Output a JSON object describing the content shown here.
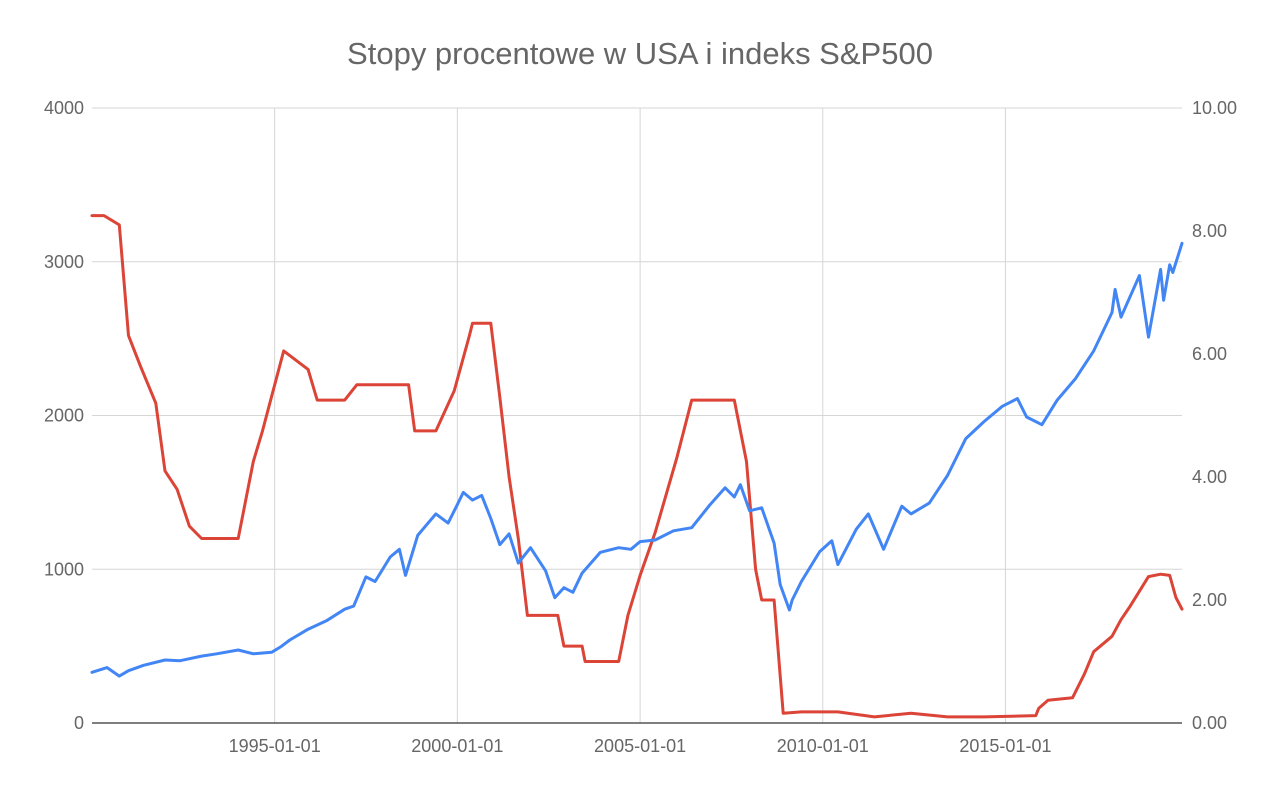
{
  "chart_data": {
    "type": "line",
    "title": "Stopy procentowe w USA i indeks S&P500",
    "x_domain": [
      "1990-01-01",
      "2019-11-01"
    ],
    "x_ticks": [
      "1995-01-01",
      "2000-01-01",
      "2005-01-01",
      "2010-01-01",
      "2015-01-01"
    ],
    "y_left": {
      "ylim": [
        0,
        4000
      ],
      "ticks": [
        "0",
        "1000",
        "2000",
        "3000",
        "4000"
      ]
    },
    "y_right": {
      "ylim": [
        0,
        10
      ],
      "ticks": [
        "0.00",
        "2.00",
        "4.00",
        "6.00",
        "8.00",
        "10.00"
      ]
    },
    "grid": true,
    "legend": "none",
    "series": [
      {
        "axis": "left",
        "color": "#4285f4",
        "points": [
          [
            "1990-01-01",
            330
          ],
          [
            "1990-06-01",
            360
          ],
          [
            "1990-10-01",
            305
          ],
          [
            "1991-01-01",
            340
          ],
          [
            "1991-06-01",
            375
          ],
          [
            "1992-01-01",
            410
          ],
          [
            "1992-06-01",
            405
          ],
          [
            "1993-01-01",
            435
          ],
          [
            "1993-06-01",
            450
          ],
          [
            "1994-01-01",
            475
          ],
          [
            "1994-06-01",
            450
          ],
          [
            "1994-12-01",
            460
          ],
          [
            "1995-03-01",
            495
          ],
          [
            "1995-06-01",
            540
          ],
          [
            "1995-12-01",
            610
          ],
          [
            "1996-06-01",
            665
          ],
          [
            "1996-12-01",
            740
          ],
          [
            "1997-03-01",
            760
          ],
          [
            "1997-07-01",
            950
          ],
          [
            "1997-10-01",
            920
          ],
          [
            "1998-03-01",
            1080
          ],
          [
            "1998-06-01",
            1130
          ],
          [
            "1998-08-01",
            960
          ],
          [
            "1998-12-01",
            1220
          ],
          [
            "1999-03-01",
            1290
          ],
          [
            "1999-06-01",
            1360
          ],
          [
            "1999-10-01",
            1300
          ],
          [
            "2000-01-01",
            1420
          ],
          [
            "2000-03-01",
            1500
          ],
          [
            "2000-06-01",
            1450
          ],
          [
            "2000-09-01",
            1480
          ],
          [
            "2000-12-01",
            1330
          ],
          [
            "2001-03-01",
            1160
          ],
          [
            "2001-06-01",
            1230
          ],
          [
            "2001-09-01",
            1040
          ],
          [
            "2002-01-01",
            1140
          ],
          [
            "2002-06-01",
            990
          ],
          [
            "2002-09-01",
            815
          ],
          [
            "2002-12-01",
            880
          ],
          [
            "2003-03-01",
            850
          ],
          [
            "2003-06-01",
            975
          ],
          [
            "2003-12-01",
            1110
          ],
          [
            "2004-06-01",
            1140
          ],
          [
            "2004-10-01",
            1130
          ],
          [
            "2005-01-01",
            1180
          ],
          [
            "2005-06-01",
            1190
          ],
          [
            "2005-12-01",
            1250
          ],
          [
            "2006-06-01",
            1270
          ],
          [
            "2006-12-01",
            1420
          ],
          [
            "2007-05-01",
            1530
          ],
          [
            "2007-08-01",
            1470
          ],
          [
            "2007-10-01",
            1550
          ],
          [
            "2008-01-01",
            1380
          ],
          [
            "2008-05-01",
            1400
          ],
          [
            "2008-09-01",
            1170
          ],
          [
            "2008-11-01",
            900
          ],
          [
            "2009-02-01",
            735
          ],
          [
            "2009-03-01",
            800
          ],
          [
            "2009-06-01",
            920
          ],
          [
            "2009-12-01",
            1115
          ],
          [
            "2010-04-01",
            1185
          ],
          [
            "2010-06-01",
            1030
          ],
          [
            "2010-12-01",
            1260
          ],
          [
            "2011-04-01",
            1360
          ],
          [
            "2011-09-01",
            1130
          ],
          [
            "2012-03-01",
            1410
          ],
          [
            "2012-06-01",
            1360
          ],
          [
            "2012-12-01",
            1430
          ],
          [
            "2013-06-01",
            1610
          ],
          [
            "2013-12-01",
            1850
          ],
          [
            "2014-06-01",
            1960
          ],
          [
            "2014-12-01",
            2060
          ],
          [
            "2015-05-01",
            2110
          ],
          [
            "2015-08-01",
            1990
          ],
          [
            "2016-01-01",
            1940
          ],
          [
            "2016-06-01",
            2100
          ],
          [
            "2016-12-01",
            2240
          ],
          [
            "2017-06-01",
            2420
          ],
          [
            "2017-12-01",
            2670
          ],
          [
            "2018-01-01",
            2820
          ],
          [
            "2018-03-01",
            2640
          ],
          [
            "2018-09-01",
            2910
          ],
          [
            "2018-12-01",
            2510
          ],
          [
            "2019-04-01",
            2950
          ],
          [
            "2019-05-01",
            2750
          ],
          [
            "2019-07-01",
            2980
          ],
          [
            "2019-08-01",
            2930
          ],
          [
            "2019-11-01",
            3120
          ]
        ]
      },
      {
        "axis": "right",
        "color": "#db4437",
        "points": [
          [
            "1990-01-01",
            8.25
          ],
          [
            "1990-05-01",
            8.25
          ],
          [
            "1990-10-01",
            8.1
          ],
          [
            "1991-01-01",
            6.3
          ],
          [
            "1991-05-01",
            5.8
          ],
          [
            "1991-10-01",
            5.2
          ],
          [
            "1992-01-01",
            4.1
          ],
          [
            "1992-05-01",
            3.8
          ],
          [
            "1992-09-01",
            3.2
          ],
          [
            "1993-01-01",
            3.0
          ],
          [
            "1993-06-01",
            3.0
          ],
          [
            "1994-01-01",
            3.0
          ],
          [
            "1994-06-01",
            4.25
          ],
          [
            "1994-09-01",
            4.75
          ],
          [
            "1995-01-01",
            5.5
          ],
          [
            "1995-04-01",
            6.05
          ],
          [
            "1995-12-01",
            5.75
          ],
          [
            "1996-03-01",
            5.25
          ],
          [
            "1996-12-01",
            5.25
          ],
          [
            "1997-04-01",
            5.5
          ],
          [
            "1998-09-01",
            5.5
          ],
          [
            "1998-11-01",
            4.75
          ],
          [
            "1999-06-01",
            4.75
          ],
          [
            "1999-12-01",
            5.4
          ],
          [
            "2000-05-01",
            6.3
          ],
          [
            "2000-06-01",
            6.5
          ],
          [
            "2000-12-01",
            6.5
          ],
          [
            "2001-03-01",
            5.3
          ],
          [
            "2001-06-01",
            4.0
          ],
          [
            "2001-09-01",
            3.0
          ],
          [
            "2001-12-01",
            1.75
          ],
          [
            "2002-06-01",
            1.75
          ],
          [
            "2002-10-01",
            1.75
          ],
          [
            "2002-12-01",
            1.25
          ],
          [
            "2003-06-01",
            1.25
          ],
          [
            "2003-07-01",
            1.0
          ],
          [
            "2004-06-01",
            1.0
          ],
          [
            "2004-09-01",
            1.75
          ],
          [
            "2005-01-01",
            2.4
          ],
          [
            "2005-06-01",
            3.1
          ],
          [
            "2006-01-01",
            4.3
          ],
          [
            "2006-06-01",
            5.25
          ],
          [
            "2007-08-01",
            5.25
          ],
          [
            "2007-12-01",
            4.25
          ],
          [
            "2008-03-01",
            2.5
          ],
          [
            "2008-05-01",
            2.0
          ],
          [
            "2008-09-01",
            2.0
          ],
          [
            "2008-12-01",
            0.16
          ],
          [
            "2009-06-01",
            0.18
          ],
          [
            "2010-06-01",
            0.18
          ],
          [
            "2011-06-01",
            0.1
          ],
          [
            "2012-06-01",
            0.16
          ],
          [
            "2013-06-01",
            0.1
          ],
          [
            "2014-06-01",
            0.1
          ],
          [
            "2015-11-01",
            0.12
          ],
          [
            "2015-12-01",
            0.24
          ],
          [
            "2016-03-01",
            0.37
          ],
          [
            "2016-11-01",
            0.41
          ],
          [
            "2017-03-01",
            0.8
          ],
          [
            "2017-06-01",
            1.16
          ],
          [
            "2017-12-01",
            1.41
          ],
          [
            "2018-03-01",
            1.68
          ],
          [
            "2018-06-01",
            1.9
          ],
          [
            "2018-12-01",
            2.38
          ],
          [
            "2019-04-01",
            2.42
          ],
          [
            "2019-07-01",
            2.4
          ],
          [
            "2019-09-01",
            2.04
          ],
          [
            "2019-11-01",
            1.85
          ]
        ]
      }
    ]
  }
}
